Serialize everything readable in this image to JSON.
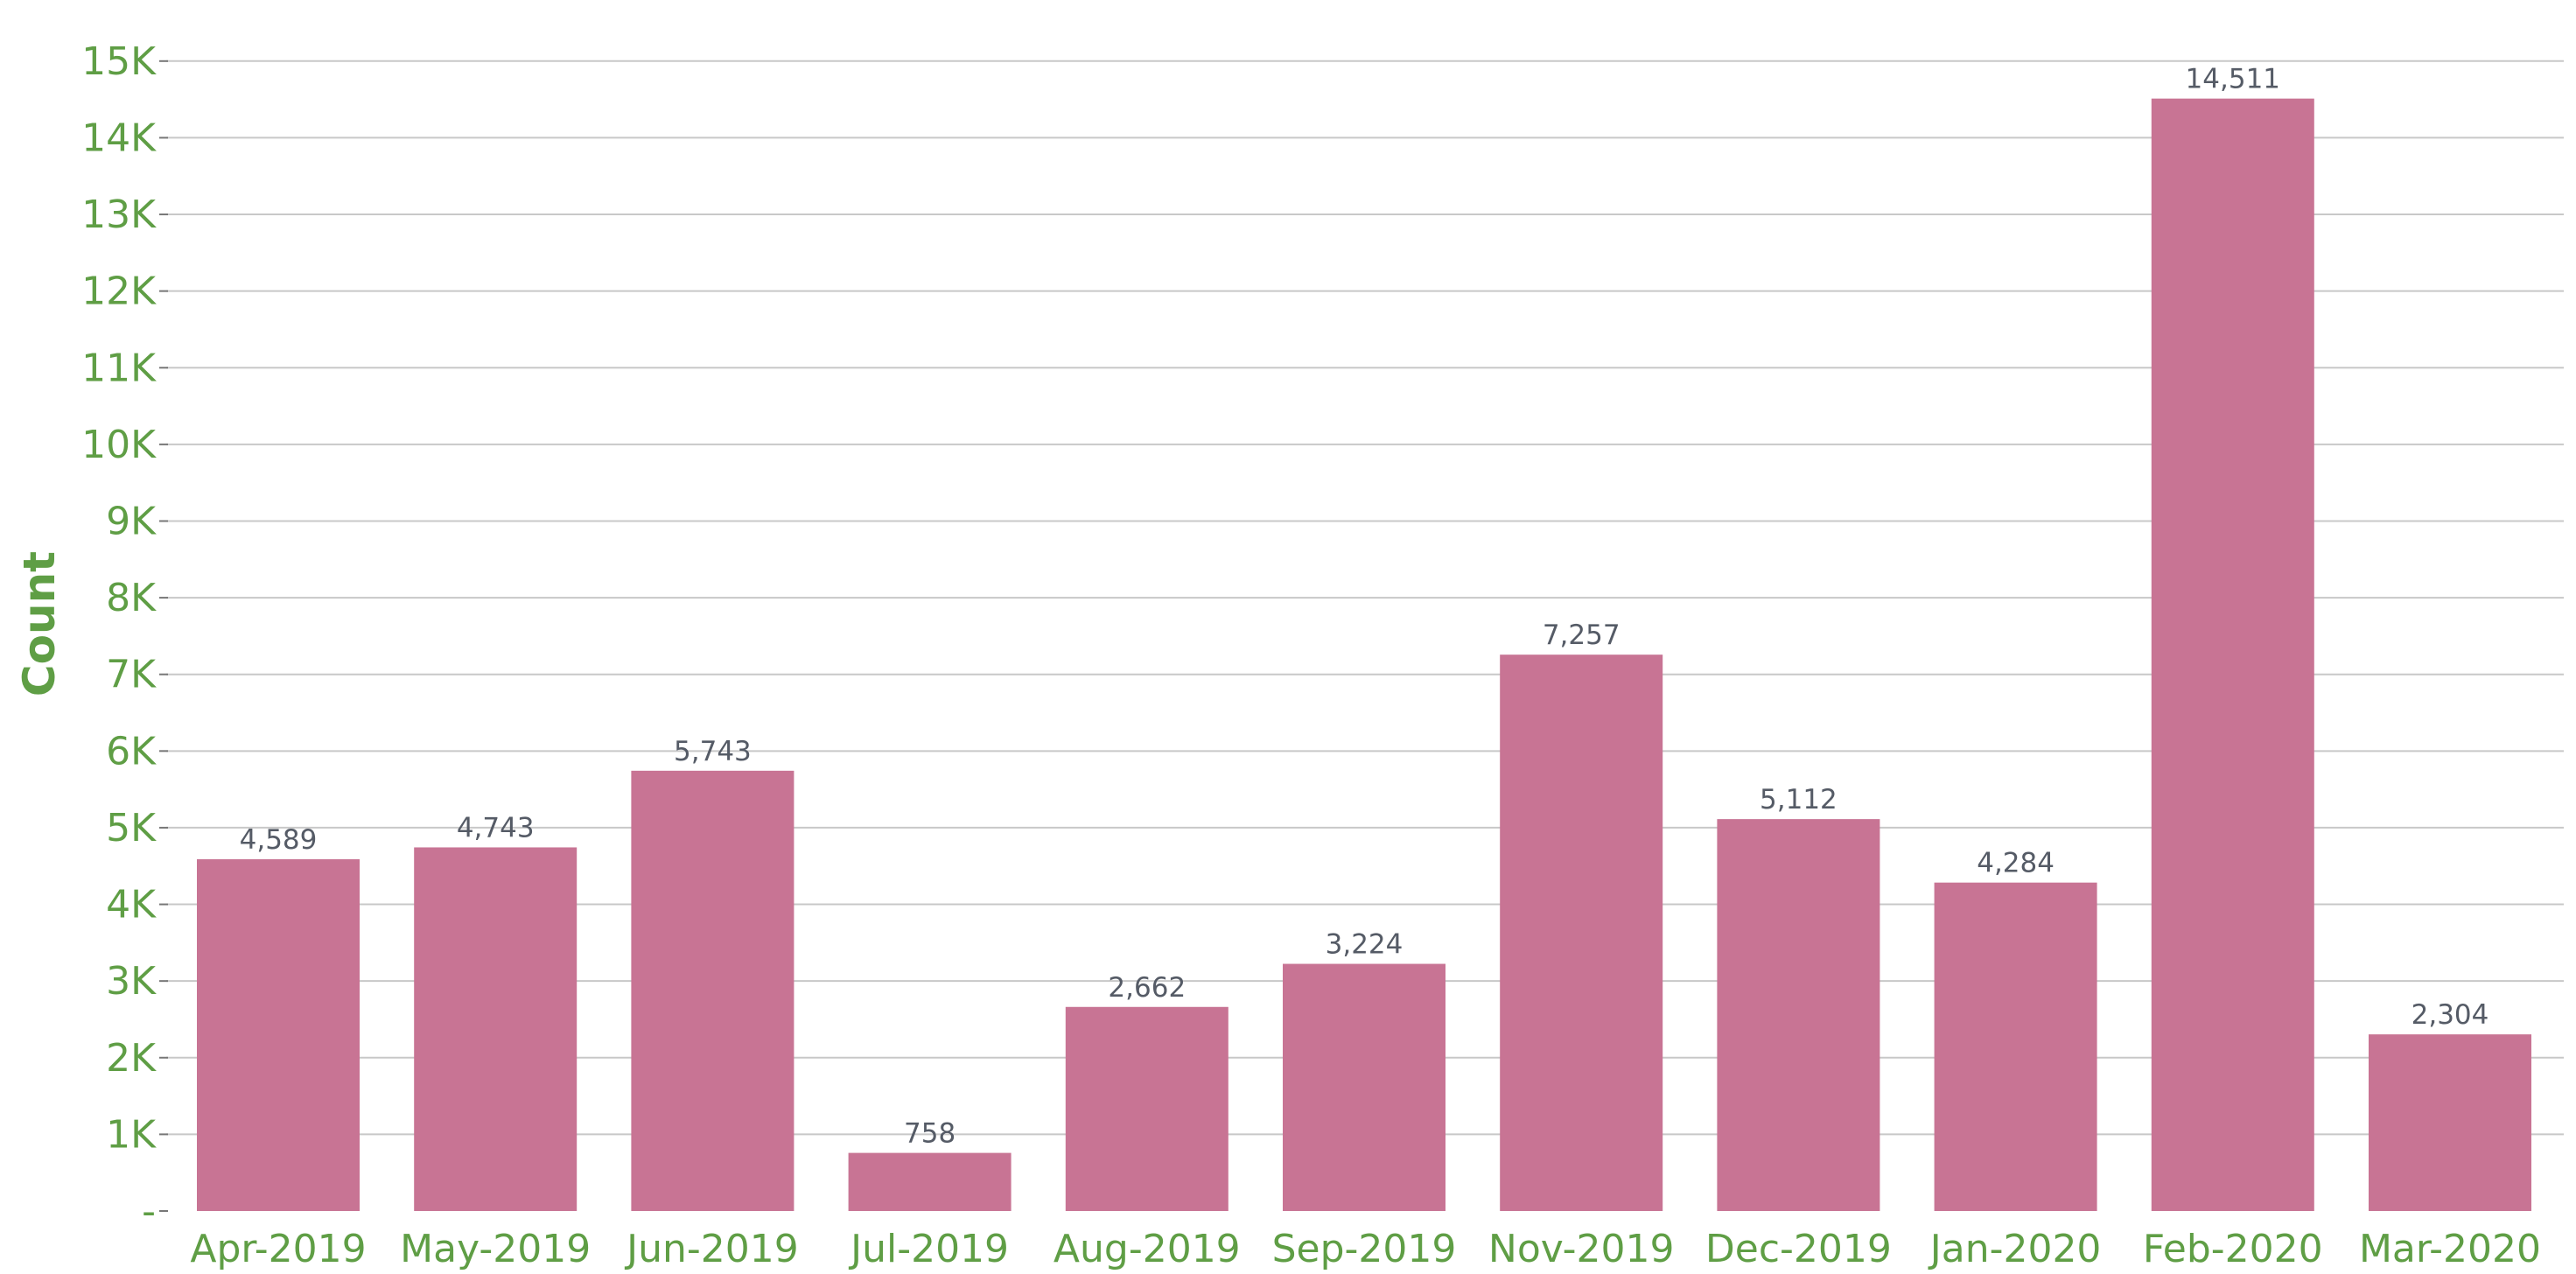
{
  "chart_data": {
    "type": "bar",
    "title": "",
    "xlabel": "",
    "ylabel": "Count",
    "ylim": [
      0,
      15500
    ],
    "yticks": [
      {
        "value": 0,
        "label": "-"
      },
      {
        "value": 1000,
        "label": "1K"
      },
      {
        "value": 2000,
        "label": "2K"
      },
      {
        "value": 3000,
        "label": "3K"
      },
      {
        "value": 4000,
        "label": "4K"
      },
      {
        "value": 5000,
        "label": "5K"
      },
      {
        "value": 6000,
        "label": "6K"
      },
      {
        "value": 7000,
        "label": "7K"
      },
      {
        "value": 8000,
        "label": "8K"
      },
      {
        "value": 9000,
        "label": "9K"
      },
      {
        "value": 10000,
        "label": "10K"
      },
      {
        "value": 11000,
        "label": "11K"
      },
      {
        "value": 12000,
        "label": "12K"
      },
      {
        "value": 13000,
        "label": "13K"
      },
      {
        "value": 14000,
        "label": "14K"
      },
      {
        "value": 15000,
        "label": "15K"
      }
    ],
    "categories": [
      "Apr-2019",
      "May-2019",
      "Jun-2019",
      "Jul-2019",
      "Aug-2019",
      "Sep-2019",
      "Nov-2019",
      "Dec-2019",
      "Jan-2020",
      "Feb-2020",
      "Mar-2020"
    ],
    "values": [
      4589,
      4743,
      5743,
      758,
      2662,
      3224,
      7257,
      5112,
      4284,
      14511,
      2304
    ],
    "data_labels": [
      "4,589",
      "4,743",
      "5,743",
      "758",
      "2,662",
      "3,224",
      "7,257",
      "5,112",
      "4,284",
      "14,511",
      "2,304"
    ],
    "grid": true,
    "legend": "none",
    "colors": {
      "bar": "#c87494",
      "axis_text": "#5f9e45",
      "data_label": "#555b66",
      "grid": "#c8c8c8"
    }
  }
}
